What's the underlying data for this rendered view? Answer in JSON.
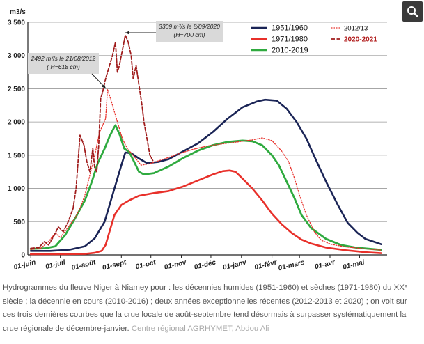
{
  "chart_data": {
    "type": "line",
    "unit_label": "m3/s",
    "ylim": [
      0,
      3500
    ],
    "y_ticks": [
      0,
      500,
      1000,
      1500,
      2000,
      2500,
      3000,
      3500
    ],
    "y_tick_labels": [
      "0",
      "500",
      "1 000",
      "1 500",
      "2 000",
      "2 500",
      "3 000",
      "3 500"
    ],
    "x_ticks": [
      0,
      30,
      61,
      92,
      122,
      153,
      183,
      214,
      245,
      273,
      304,
      334
    ],
    "x_tick_labels": [
      "01-juin",
      "01-juil",
      "01-août",
      "01-sept",
      "01-oct",
      "01-nov",
      "01-déc",
      "01-janv",
      "01-févr",
      "01-mars",
      "01-avr",
      "01-mai"
    ],
    "xlim": [
      -3,
      362
    ],
    "grid": "horizontal",
    "legend": {
      "placement": "top-right",
      "entries": [
        {
          "label": "1951/1960",
          "color": "#1a2456",
          "style": "solid"
        },
        {
          "label": "2012/13",
          "color": "#e8302a",
          "style": "dotted"
        },
        {
          "label": "2020-2021",
          "color": "#a01c1c",
          "style": "dashed"
        },
        {
          "label": "1971/1980",
          "color": "#e8302a",
          "style": "solid"
        },
        {
          "label": "2010-2019",
          "color": "#2faa3f",
          "style": "solid"
        }
      ]
    },
    "series": [
      {
        "name": "1951/1960",
        "color": "#1a2456",
        "width": 2.6,
        "dash": "",
        "points": [
          [
            0,
            60
          ],
          [
            20,
            60
          ],
          [
            40,
            80
          ],
          [
            55,
            130
          ],
          [
            65,
            250
          ],
          [
            75,
            500
          ],
          [
            85,
            1000
          ],
          [
            92,
            1350
          ],
          [
            96,
            1540
          ],
          [
            102,
            1530
          ],
          [
            110,
            1450
          ],
          [
            118,
            1380
          ],
          [
            130,
            1400
          ],
          [
            140,
            1440
          ],
          [
            155,
            1560
          ],
          [
            170,
            1680
          ],
          [
            185,
            1850
          ],
          [
            200,
            2050
          ],
          [
            215,
            2220
          ],
          [
            230,
            2310
          ],
          [
            238,
            2335
          ],
          [
            250,
            2320
          ],
          [
            260,
            2200
          ],
          [
            270,
            2000
          ],
          [
            280,
            1750
          ],
          [
            290,
            1420
          ],
          [
            300,
            1100
          ],
          [
            312,
            750
          ],
          [
            322,
            480
          ],
          [
            332,
            330
          ],
          [
            340,
            240
          ],
          [
            348,
            200
          ],
          [
            356,
            160
          ]
        ]
      },
      {
        "name": "1971/1980",
        "color": "#e8302a",
        "width": 2.6,
        "dash": "",
        "points": [
          [
            0,
            10
          ],
          [
            30,
            10
          ],
          [
            55,
            15
          ],
          [
            65,
            30
          ],
          [
            72,
            60
          ],
          [
            76,
            150
          ],
          [
            80,
            350
          ],
          [
            85,
            600
          ],
          [
            92,
            750
          ],
          [
            100,
            820
          ],
          [
            110,
            890
          ],
          [
            125,
            930
          ],
          [
            140,
            960
          ],
          [
            155,
            1030
          ],
          [
            170,
            1120
          ],
          [
            185,
            1210
          ],
          [
            195,
            1260
          ],
          [
            202,
            1270
          ],
          [
            208,
            1250
          ],
          [
            215,
            1150
          ],
          [
            225,
            1000
          ],
          [
            235,
            820
          ],
          [
            245,
            620
          ],
          [
            255,
            460
          ],
          [
            265,
            330
          ],
          [
            275,
            230
          ],
          [
            285,
            170
          ],
          [
            300,
            110
          ],
          [
            320,
            70
          ],
          [
            340,
            40
          ],
          [
            356,
            25
          ]
        ]
      },
      {
        "name": "2010-2019",
        "color": "#2faa3f",
        "width": 2.8,
        "dash": "",
        "points": [
          [
            0,
            90
          ],
          [
            15,
            100
          ],
          [
            25,
            130
          ],
          [
            35,
            300
          ],
          [
            45,
            550
          ],
          [
            55,
            820
          ],
          [
            62,
            1100
          ],
          [
            68,
            1380
          ],
          [
            75,
            1600
          ],
          [
            80,
            1780
          ],
          [
            84,
            1900
          ],
          [
            86,
            1950
          ],
          [
            90,
            1820
          ],
          [
            95,
            1600
          ],
          [
            100,
            1550
          ],
          [
            105,
            1400
          ],
          [
            110,
            1250
          ],
          [
            115,
            1210
          ],
          [
            125,
            1230
          ],
          [
            140,
            1330
          ],
          [
            155,
            1460
          ],
          [
            170,
            1570
          ],
          [
            185,
            1650
          ],
          [
            200,
            1700
          ],
          [
            215,
            1720
          ],
          [
            225,
            1710
          ],
          [
            235,
            1650
          ],
          [
            245,
            1500
          ],
          [
            252,
            1350
          ],
          [
            260,
            1100
          ],
          [
            268,
            850
          ],
          [
            275,
            600
          ],
          [
            285,
            400
          ],
          [
            300,
            240
          ],
          [
            315,
            150
          ],
          [
            330,
            110
          ],
          [
            345,
            90
          ],
          [
            356,
            75
          ]
        ]
      },
      {
        "name": "2012/13",
        "color": "#e8302a",
        "width": 1.3,
        "dash": "1.5 2",
        "points": [
          [
            0,
            80
          ],
          [
            10,
            100
          ],
          [
            18,
            200
          ],
          [
            25,
            330
          ],
          [
            30,
            260
          ],
          [
            38,
            420
          ],
          [
            45,
            560
          ],
          [
            50,
            700
          ],
          [
            55,
            900
          ],
          [
            60,
            1200
          ],
          [
            65,
            1500
          ],
          [
            70,
            1850
          ],
          [
            76,
            2050
          ],
          [
            78,
            2492
          ],
          [
            82,
            2300
          ],
          [
            86,
            2100
          ],
          [
            90,
            1900
          ],
          [
            93,
            1750
          ],
          [
            98,
            1600
          ],
          [
            104,
            1500
          ],
          [
            112,
            1350
          ],
          [
            120,
            1370
          ],
          [
            135,
            1440
          ],
          [
            150,
            1520
          ],
          [
            165,
            1590
          ],
          [
            180,
            1640
          ],
          [
            195,
            1670
          ],
          [
            210,
            1700
          ],
          [
            225,
            1730
          ],
          [
            235,
            1760
          ],
          [
            245,
            1720
          ],
          [
            255,
            1560
          ],
          [
            262,
            1400
          ],
          [
            268,
            1150
          ],
          [
            273,
            900
          ],
          [
            280,
            600
          ],
          [
            288,
            350
          ],
          [
            295,
            220
          ],
          [
            305,
            160
          ],
          [
            320,
            120
          ],
          [
            340,
            90
          ],
          [
            356,
            70
          ]
        ]
      },
      {
        "name": "2020-2021",
        "color": "#a01c1c",
        "width": 1.8,
        "dash": "5 2.5",
        "points": [
          [
            0,
            100
          ],
          [
            8,
            110
          ],
          [
            14,
            200
          ],
          [
            18,
            150
          ],
          [
            24,
            300
          ],
          [
            28,
            420
          ],
          [
            33,
            350
          ],
          [
            38,
            500
          ],
          [
            43,
            700
          ],
          [
            46,
            1000
          ],
          [
            50,
            1800
          ],
          [
            54,
            1650
          ],
          [
            57,
            1400
          ],
          [
            60,
            1250
          ],
          [
            63,
            1600
          ],
          [
            65,
            1300
          ],
          [
            67,
            1250
          ],
          [
            69,
            1650
          ],
          [
            71,
            2350
          ],
          [
            73,
            2450
          ],
          [
            76,
            2650
          ],
          [
            79,
            2800
          ],
          [
            83,
            3000
          ],
          [
            86,
            3200
          ],
          [
            88,
            2750
          ],
          [
            90,
            2850
          ],
          [
            92,
            3000
          ],
          [
            94,
            3150
          ],
          [
            96,
            3309
          ],
          [
            99,
            3200
          ],
          [
            102,
            3000
          ],
          [
            104,
            2650
          ],
          [
            107,
            2850
          ],
          [
            110,
            2550
          ],
          [
            113,
            2250
          ],
          [
            115,
            2000
          ],
          [
            118,
            1750
          ],
          [
            121,
            1500
          ],
          [
            124,
            1420
          ]
        ]
      }
    ],
    "annotations": [
      {
        "lines": [
          "2492 m³/s  le 21/08/2012",
          "( H=618 cm)"
        ],
        "target": [
          78,
          2492
        ]
      },
      {
        "lines": [
          "3309 m³/s  le 8/09/2020",
          "(H=700 cm)"
        ],
        "target": [
          96,
          3309
        ]
      }
    ]
  },
  "caption": {
    "text": "Hydrogrammes du fleuve Niger à Niamey pour : les décennies humides (1951-1960) et sèches (1971-1980) du XXᵉ siècle ; la décennie en cours (2010-2016) ; deux années exceptionnelles récentes (2012-2013 et 2020) ; on voit sur ces trois dernières courbes que la crue locale de août-septembre tend désormais à surpasser systématiquement la crue régionale de décembre-janvier.",
    "credit": "Centre régional AGRHYMET, Abdou Ali"
  },
  "ui": {
    "zoom_icon": "magnifier-icon"
  }
}
